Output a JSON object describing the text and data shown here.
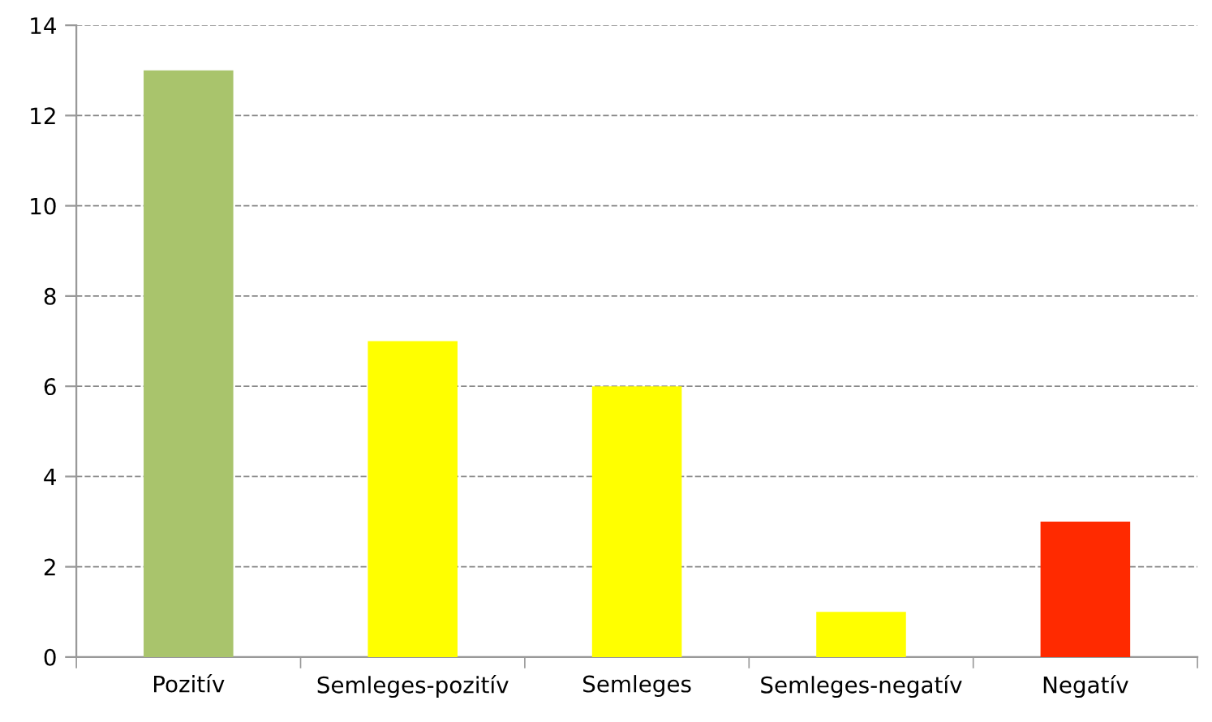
{
  "chart_data": {
    "type": "bar",
    "categories": [
      "Pozitív",
      "Semleges-pozitív",
      "Semleges",
      "Semleges-negatív",
      "Negatív"
    ],
    "values": [
      13,
      7,
      6,
      1,
      3
    ],
    "colors": [
      "#a9c46c",
      "#ffff00",
      "#ffff00",
      "#ffff00",
      "#ff2a00"
    ],
    "ylim": [
      0,
      14
    ],
    "yticks": [
      0,
      2,
      4,
      6,
      8,
      10,
      12,
      14
    ],
    "grid": "y",
    "legend": false
  }
}
